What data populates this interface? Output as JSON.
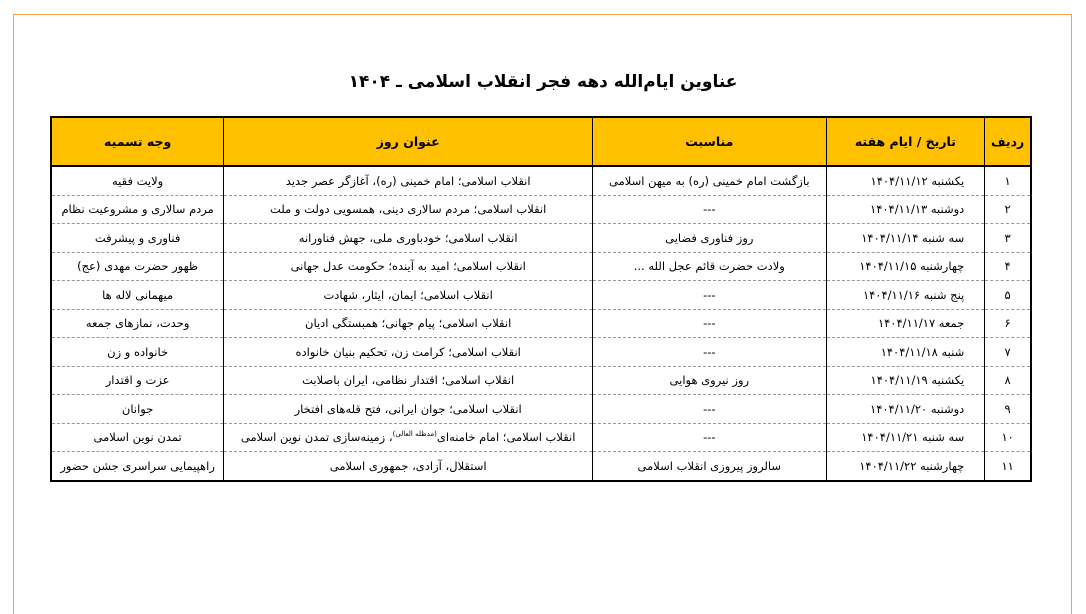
{
  "title": "عناوین ایام‌الله دهه فجر انقلاب اسلامی ـ ۱۴۰۴",
  "headers": [
    "ردیف",
    "تاریخ / ایام هفته",
    "مناسبت",
    "عنوان روز",
    "وجه تسمیه"
  ],
  "rows": [
    {
      "num": "۱",
      "date": "یکشنبه ۱۴۰۴/۱۱/۱۲",
      "occasion": "بازگشت امام خمینی (ره) به میهن اسلامی",
      "title": "انقلاب اسلامی؛ امام خمینی (ره)، آغازگر عصر جدید",
      "reason": "ولایت فقیه"
    },
    {
      "num": "۲",
      "date": "دوشنبه ۱۴۰۴/۱۱/۱۳",
      "occasion": "---",
      "title": "انقلاب اسلامی؛ مردم سالاری دینی، همسویی دولت و ملت",
      "reason": "مردم سالاری و مشروعیت نظام"
    },
    {
      "num": "۳",
      "date": "سه شنبه ۱۴۰۴/۱۱/۱۴",
      "occasion": "روز فناوری فضایی",
      "title": "انقلاب اسلامی؛ خودباوری ملی، جهش فناورانه",
      "reason": "فناوری و پیشرفت"
    },
    {
      "num": "۴",
      "date": "چهارشنبه ۱۴۰۴/۱۱/۱۵",
      "occasion": "ولادت حضرت قائم عجل الله ...",
      "title": "انقلاب اسلامی؛ امید به آینده؛ حکومت عدل جهانی",
      "reason": "ظهور حضرت مهدی (عج)"
    },
    {
      "num": "۵",
      "date": "پنج شنبه ۱۴۰۴/۱۱/۱۶",
      "occasion": "---",
      "title": "انقلاب اسلامی؛ ایمان، ایثار، شهادت",
      "reason": "میهمانی لاله ها"
    },
    {
      "num": "۶",
      "date": "جمعه ۱۴۰۴/۱۱/۱۷",
      "occasion": "---",
      "title": "انقلاب اسلامی؛ پیام جهانی؛ همبستگی ادیان",
      "reason": "وحدت، نمازهای جمعه"
    },
    {
      "num": "۷",
      "date": "شنبه ۱۴۰۴/۱۱/۱۸",
      "occasion": "---",
      "title": "انقلاب اسلامی؛ کرامت زن، تحکیم بنیان خانواده",
      "reason": "خانواده و زن"
    },
    {
      "num": "۸",
      "date": "یکشنبه ۱۴۰۴/۱۱/۱۹",
      "occasion": "روز نیروی هوایی",
      "title": "انقلاب اسلامی؛ اقتدار نظامی، ایران باصلابت",
      "reason": "عزت و اقتدار"
    },
    {
      "num": "۹",
      "date": "دوشنبه ۱۴۰۴/۱۱/۲۰",
      "occasion": "---",
      "title": "انقلاب اسلامی؛ جوان ایرانی، فتح قله‌های افتخار",
      "reason": "جوانان"
    },
    {
      "num": "۱۰",
      "date": "سه شنبه ۱۴۰۴/۱۱/۲۱",
      "occasion": "---",
      "title": "انقلاب اسلامی؛ امام خامنه‌ای",
      "title_sup": "(مدظله العالی)",
      "title_after": "، زمینه‌سازی تمدن نوین اسلامی",
      "reason": "تمدن نوین اسلامی"
    },
    {
      "num": "۱۱",
      "date": "چهارشنبه ۱۴۰۴/۱۱/۲۲",
      "occasion": "سالروز پیروزی انقلاب اسلامی",
      "title": "استقلال، آزادی، جمهوری اسلامی",
      "reason": "راهپیمایی سراسری جشن حضور"
    }
  ]
}
